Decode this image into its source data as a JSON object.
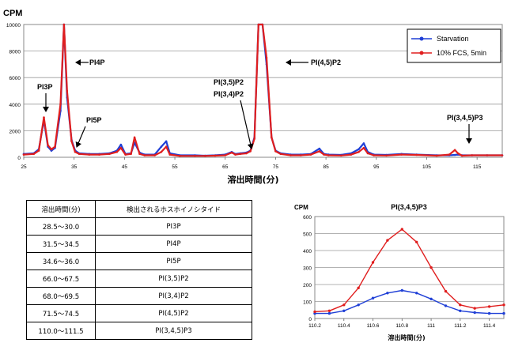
{
  "main_chart": {
    "ylabel": "CPM",
    "xlabel": "溶出時間(分)",
    "legend": [
      {
        "name": "Starvation",
        "color": "#1f3fd6"
      },
      {
        "name": "10% FCS, 5min",
        "color": "#e01e1e"
      }
    ],
    "annotations": [
      "PI3P",
      "PI4P",
      "PI5P",
      "PI(3,5)P2",
      "PI(3,4)P2",
      "PI(4,5)P2",
      "PI(3,4,5)P3"
    ]
  },
  "table": {
    "headers": [
      "溶出時間(分)",
      "検出されるホスホイノシタイド"
    ],
    "rows": [
      [
        "28.5〜30.0",
        "PI3P"
      ],
      [
        "31.5〜34.5",
        "PI4P"
      ],
      [
        "34.6〜36.0",
        "PI5P"
      ],
      [
        "66.0〜67.5",
        "PI(3,5)P2"
      ],
      [
        "68.0〜69.5",
        "PI(3,4)P2"
      ],
      [
        "71.5〜74.5",
        "PI(4,5)P2"
      ],
      [
        "110.0〜111.5",
        "PI(3,4,5)P3"
      ]
    ]
  },
  "inset_chart": {
    "title": "PI(3,4,5)P3",
    "ylabel": "CPM",
    "xlabel": "溶出時間(分)"
  },
  "chart_data": [
    {
      "type": "line",
      "ylabel": "CPM",
      "xlabel": "溶出時間(分)",
      "xlim": [
        25,
        120
      ],
      "ylim": [
        0,
        10000
      ],
      "xticks": [
        25,
        35,
        45,
        55,
        65,
        75,
        85,
        95,
        105,
        115
      ],
      "yticks": [
        0,
        2000,
        4000,
        6000,
        8000,
        10000
      ],
      "grid": "horizontal",
      "legend_position": "top-right",
      "series": [
        {
          "name": "Starvation",
          "color": "#1f3fd6",
          "x": [
            25,
            27,
            28,
            29,
            29.8,
            30.5,
            31.2,
            32.3,
            33,
            33.6,
            34.5,
            35.2,
            36,
            38,
            40,
            42,
            43.5,
            44.3,
            45.2,
            46.3,
            47,
            48,
            49,
            51,
            52.3,
            53.3,
            54,
            56,
            59,
            61,
            63,
            65,
            66.3,
            67,
            68,
            69.2,
            70,
            70.8,
            71.6,
            72.4,
            73.2,
            74.2,
            75,
            76,
            78,
            80,
            82,
            83.7,
            84.6,
            85.5,
            88,
            90,
            91.5,
            92.5,
            93.3,
            94.5,
            97,
            100,
            103,
            107,
            109.5,
            110.6,
            111.2,
            112,
            114,
            117,
            120
          ],
          "y": [
            250,
            300,
            600,
            2800,
            800,
            500,
            700,
            3500,
            10000,
            4500,
            1300,
            500,
            300,
            250,
            250,
            300,
            500,
            950,
            250,
            300,
            1100,
            350,
            200,
            200,
            800,
            1200,
            300,
            150,
            150,
            120,
            150,
            200,
            400,
            250,
            300,
            350,
            500,
            1500,
            10000,
            10000,
            7000,
            1500,
            500,
            300,
            200,
            200,
            250,
            650,
            250,
            200,
            180,
            300,
            600,
            1050,
            400,
            200,
            180,
            250,
            200,
            150,
            150,
            180,
            200,
            150,
            150,
            150,
            150
          ]
        },
        {
          "name": "10% FCS, 5min",
          "color": "#e01e1e",
          "x": [
            25,
            27,
            28,
            29,
            29.8,
            30.5,
            31.2,
            32.3,
            33,
            33.6,
            34.5,
            35.2,
            36,
            38,
            40,
            42,
            43.5,
            44.3,
            45.2,
            46.3,
            47,
            48,
            49,
            51,
            52.3,
            53.3,
            54,
            56,
            59,
            61,
            63,
            65,
            66.3,
            67,
            68,
            69.2,
            70,
            70.8,
            71.6,
            72.4,
            73.2,
            74.2,
            75,
            76,
            78,
            80,
            82,
            83.7,
            84.6,
            85.5,
            88,
            90,
            91.5,
            92.5,
            93.3,
            94.5,
            97,
            100,
            103,
            107,
            109.5,
            110.6,
            111.2,
            112,
            114,
            117,
            120
          ],
          "y": [
            200,
            250,
            500,
            3000,
            900,
            600,
            800,
            4000,
            10000,
            5000,
            1200,
            400,
            250,
            200,
            200,
            250,
            400,
            700,
            200,
            250,
            1500,
            250,
            150,
            150,
            400,
            800,
            200,
            100,
            100,
            100,
            120,
            150,
            350,
            200,
            250,
            300,
            450,
            1400,
            10000,
            10000,
            7500,
            1500,
            450,
            250,
            150,
            150,
            200,
            450,
            200,
            150,
            130,
            200,
            400,
            700,
            300,
            150,
            130,
            200,
            180,
            120,
            200,
            550,
            300,
            120,
            150,
            150,
            150
          ]
        }
      ]
    },
    {
      "type": "line",
      "title": "PI(3,4,5)P3",
      "ylabel": "CPM",
      "xlabel": "溶出時間(分)",
      "xlim": [
        110.2,
        111.5
      ],
      "ylim": [
        0,
        600
      ],
      "xticks": [
        110.2,
        110.4,
        110.6,
        110.8,
        111,
        111.2,
        111.4
      ],
      "yticks": [
        0,
        100,
        200,
        300,
        400,
        500,
        600
      ],
      "grid": "horizontal",
      "series": [
        {
          "name": "Starvation",
          "color": "#1f3fd6",
          "x": [
            110.2,
            110.3,
            110.4,
            110.5,
            110.6,
            110.7,
            110.8,
            110.9,
            111.0,
            111.1,
            111.2,
            111.3,
            111.4,
            111.5
          ],
          "y": [
            30,
            30,
            45,
            80,
            120,
            150,
            165,
            150,
            115,
            75,
            45,
            35,
            30,
            30
          ]
        },
        {
          "name": "10% FCS, 5min",
          "color": "#e01e1e",
          "x": [
            110.2,
            110.3,
            110.4,
            110.5,
            110.6,
            110.7,
            110.8,
            110.9,
            111.0,
            111.1,
            111.2,
            111.3,
            111.4,
            111.5
          ],
          "y": [
            40,
            45,
            80,
            180,
            330,
            460,
            525,
            450,
            300,
            160,
            80,
            60,
            70,
            80
          ]
        }
      ]
    }
  ]
}
